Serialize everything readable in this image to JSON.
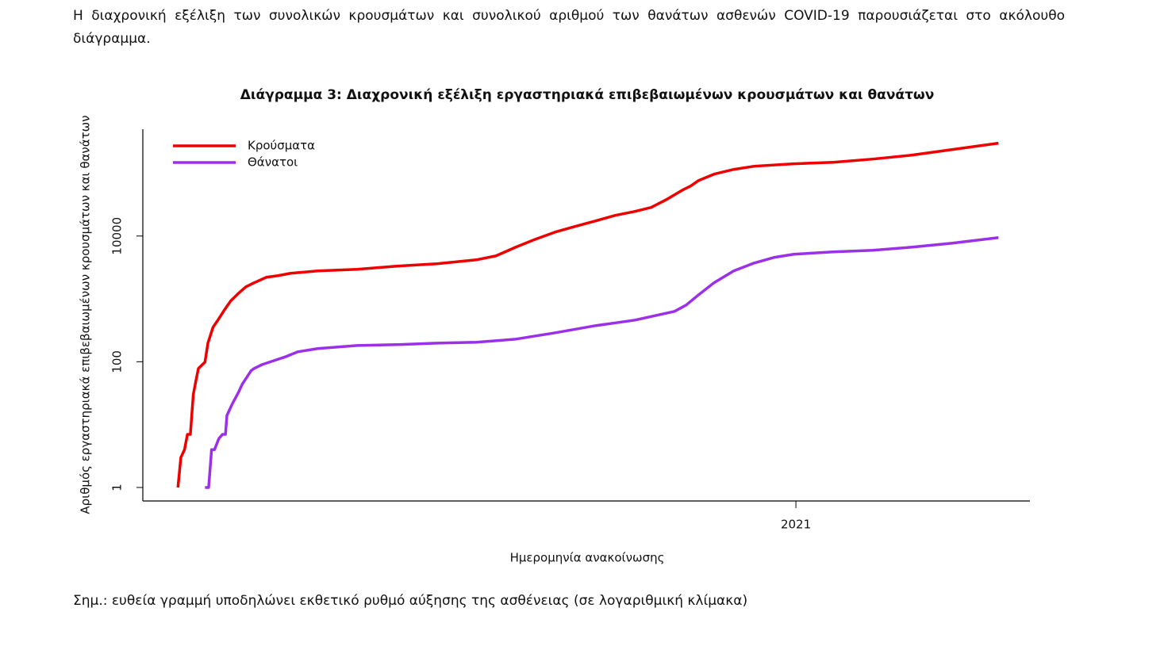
{
  "intro": "Η διαχρονική εξέλιξη των συνολικών κρουσμάτων και συνολικού αριθμού των θανάτων ασθενών COVID-19 παρουσιάζεται στο ακόλουθο διάγραμμα.",
  "chart_data": {
    "type": "line",
    "title": "Διάγραμμα 3: Διαχρονική εξέλιξη εργαστηριακά επιβεβαιωμένων κρουσμάτων και θανάτων",
    "x_label": "Ημερομηνία ανακοίνωσης",
    "y_label": "Αριθμός εργαστηριακά επιβεβαιωμένων κρουσμάτων και θανάτων",
    "log_y": true,
    "legend": "top-left",
    "xlim": [
      2020.107,
      2021.32
    ],
    "xticks": [
      2021
    ],
    "ylim": [
      0.61,
      500000
    ],
    "yticks": [
      1,
      100,
      10000
    ],
    "series": [
      {
        "name": "Κρούσματα",
        "color": "#ee0000",
        "x": [
          2020.155,
          2020.159,
          2020.164,
          2020.168,
          2020.172,
          2020.176,
          2020.179,
          2020.183,
          2020.192,
          2020.196,
          2020.203,
          2020.209,
          2020.218,
          2020.227,
          2020.238,
          2020.248,
          2020.259,
          2020.276,
          2020.292,
          2020.309,
          2020.346,
          2020.4,
          2020.454,
          2020.509,
          2020.563,
          2020.59,
          2020.617,
          2020.644,
          2020.671,
          2020.698,
          2020.726,
          2020.753,
          2020.78,
          2020.802,
          2020.823,
          2020.845,
          2020.856,
          2020.867,
          2020.888,
          2020.915,
          2020.943,
          2020.997,
          2021.051,
          2021.105,
          2021.159,
          2021.214,
          2021.277
        ],
        "values": [
          1,
          3,
          4,
          7,
          7,
          30,
          46,
          78,
          99,
          198,
          354,
          447,
          652,
          923,
          1233,
          1557,
          1801,
          2209,
          2340,
          2553,
          2786,
          2951,
          3314,
          3615,
          4181,
          4841,
          6655,
          8905,
          11570,
          14170,
          17370,
          21290,
          24610,
          28450,
          38030,
          53920,
          62390,
          76420,
          96350,
          114700,
          128900,
          140700,
          149000,
          167400,
          193700,
          237300,
          299300
        ]
      },
      {
        "name": "Θάνατοι",
        "color": "#9b30e8",
        "x": [
          2020.192,
          2020.197,
          2020.201,
          2020.205,
          2020.211,
          2020.216,
          2020.22,
          2020.222,
          2020.229,
          2020.238,
          2020.243,
          2020.248,
          2020.255,
          2020.259,
          2020.27,
          2020.286,
          2020.303,
          2020.319,
          2020.346,
          2020.4,
          2020.454,
          2020.509,
          2020.563,
          2020.617,
          2020.671,
          2020.726,
          2020.78,
          2020.834,
          2020.85,
          2020.867,
          2020.888,
          2020.915,
          2020.943,
          2020.97,
          2020.997,
          2021.051,
          2021.105,
          2021.159,
          2021.214,
          2021.277
        ],
        "values": [
          1,
          1,
          4,
          4,
          6,
          7,
          7,
          14,
          21,
          33,
          44,
          54,
          72,
          78,
          90,
          104,
          121,
          144,
          162,
          181,
          187,
          198,
          204,
          229,
          289,
          375,
          460,
          633,
          798,
          1164,
          1801,
          2786,
          3723,
          4563,
          5129,
          5598,
          5930,
          6655,
          7692,
          9434
        ]
      }
    ]
  },
  "note": "Σημ.: ευθεία γραμμή υποδηλώνει εκθετικό ρυθμό αύξησης της ασθένειας (σε λογαριθμική κλίμακα)"
}
